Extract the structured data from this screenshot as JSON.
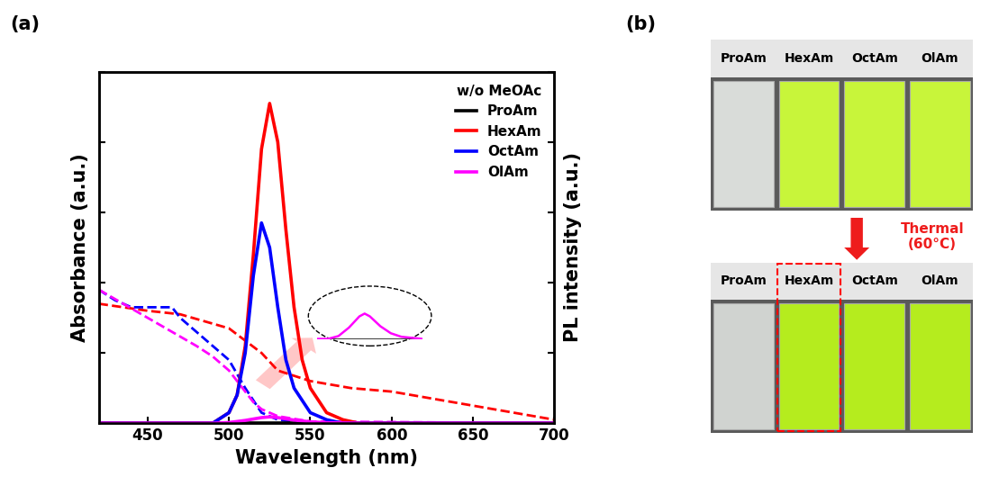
{
  "chart_data": {
    "type": "line",
    "xlabel": "Wavelength (nm)",
    "ylabel": "Absorbance (a.u.)",
    "y2label": "PL intensity (a.u.)",
    "xlim": [
      420,
      700
    ],
    "xticks": [
      450,
      500,
      550,
      600,
      650,
      700
    ],
    "ylim": [
      0,
      1
    ],
    "yticks": [
      0,
      0.2,
      0.4,
      0.6,
      0.8,
      1.0
    ],
    "y2lim": [
      0,
      1
    ],
    "y2ticks": [
      0,
      0.2,
      0.4,
      0.6,
      0.8,
      1.0
    ],
    "tick_labels": "x",
    "legend": "upper right",
    "legend_title": "w/o MeOAc",
    "series": [
      {
        "name": "ProAm",
        "color": "#000000",
        "line_style": "dashed",
        "axis": "y",
        "x": [
          420,
          700
        ],
        "values": [
          0,
          0
        ]
      },
      {
        "name": "HexAm",
        "color": "#ff0000",
        "line_style": "dashed",
        "axis": "y",
        "x": [
          420,
          450,
          470,
          500,
          520,
          530,
          550,
          575,
          600,
          625,
          650,
          675,
          700
        ],
        "values": [
          0.34,
          0.32,
          0.31,
          0.27,
          0.2,
          0.15,
          0.12,
          0.1,
          0.09,
          0.07,
          0.05,
          0.03,
          0.01
        ]
      },
      {
        "name": "OctAm",
        "color": "#0000ff",
        "line_style": "dashed",
        "axis": "y",
        "x": [
          420,
          430,
          440,
          450,
          465,
          470,
          480,
          490,
          500,
          510,
          520,
          530,
          550,
          700
        ],
        "values": [
          0.38,
          0.35,
          0.33,
          0.33,
          0.33,
          0.3,
          0.26,
          0.22,
          0.18,
          0.1,
          0.03,
          0.01,
          0.0,
          0.0
        ]
      },
      {
        "name": "OlAm",
        "color": "#ff00ff",
        "line_style": "dashed",
        "axis": "y",
        "x": [
          420,
          435,
          450,
          465,
          480,
          490,
          500,
          510,
          515,
          520,
          530,
          550,
          700
        ],
        "values": [
          0.38,
          0.34,
          0.3,
          0.26,
          0.22,
          0.19,
          0.15,
          0.09,
          0.06,
          0.04,
          0.02,
          0.005,
          0.0
        ]
      },
      {
        "name": "ProAm",
        "color": "#000000",
        "line_style": "solid",
        "axis": "y2",
        "x": [
          420,
          700
        ],
        "values": [
          0,
          0
        ]
      },
      {
        "name": "HexAm",
        "color": "#ff0000",
        "line_style": "solid",
        "axis": "y2",
        "x": [
          420,
          490,
          500,
          505,
          510,
          515,
          520,
          525,
          530,
          535,
          540,
          545,
          550,
          560,
          570,
          580,
          700
        ],
        "values": [
          0,
          0,
          0.03,
          0.08,
          0.22,
          0.48,
          0.78,
          0.91,
          0.8,
          0.55,
          0.33,
          0.18,
          0.1,
          0.03,
          0.01,
          0,
          0
        ]
      },
      {
        "name": "OctAm",
        "color": "#0000ff",
        "line_style": "solid",
        "axis": "y2",
        "x": [
          420,
          490,
          500,
          505,
          510,
          515,
          520,
          525,
          530,
          535,
          540,
          550,
          560,
          570,
          700
        ],
        "values": [
          0,
          0,
          0.03,
          0.08,
          0.2,
          0.42,
          0.57,
          0.5,
          0.33,
          0.18,
          0.1,
          0.03,
          0.01,
          0,
          0
        ]
      },
      {
        "name": "OlAm",
        "color": "#ff00ff",
        "line_style": "solid",
        "axis": "y2",
        "x": [
          420,
          490,
          500,
          510,
          520,
          525,
          530,
          540,
          550,
          560,
          580,
          700
        ],
        "values": [
          0,
          0,
          0.002,
          0.008,
          0.016,
          0.018,
          0.016,
          0.009,
          0.004,
          0.0015,
          0,
          0
        ]
      }
    ],
    "inset": {
      "xlim": [
        480,
        580
      ],
      "ylim": [
        0,
        0.03
      ]
    }
  },
  "panel_labels": [
    "(a)",
    "(b)"
  ],
  "photo": {
    "vials": [
      "ProAm",
      "HexAm",
      "OctAm",
      "OlAm"
    ],
    "arrow_label": "Thermal\n(60°C)"
  }
}
